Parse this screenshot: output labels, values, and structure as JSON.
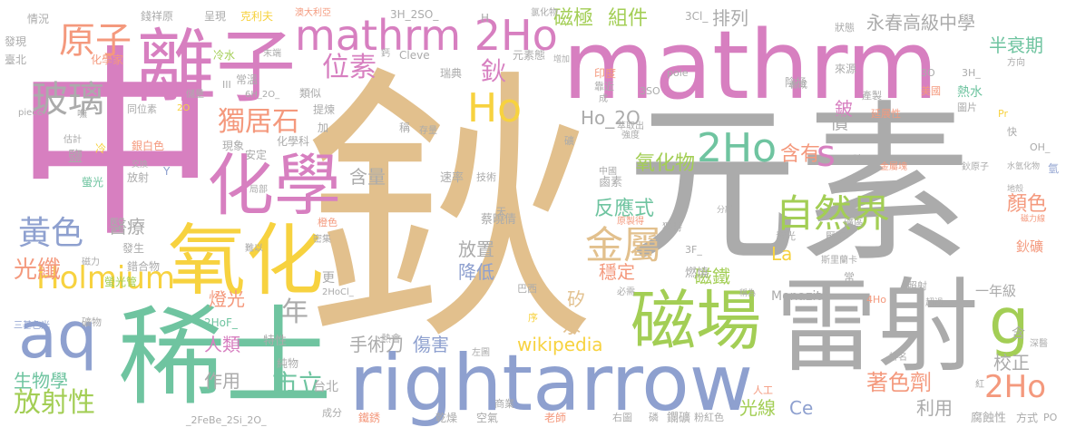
{
  "words": {
    "w1": "鈥",
    "w2": "元素",
    "w3": "mathrm",
    "w4": "中",
    "w5": "雷射",
    "w6": "rightarrow",
    "w7": "稀土",
    "w8": "離子",
    "w9": "化學",
    "w10": "氧化",
    "w11": "磁場",
    "w12": "mathrm 2Ho",
    "w13": "aq",
    "w14": "g",
    "w15": "2Ho",
    "w16": "Ho",
    "w17": "Holmium",
    "w18": "自然界",
    "w19": "金屬",
    "w20": "2Ho",
    "w21": "s",
    "w22": "玻璃",
    "w23": "原子",
    "w24": "位素",
    "w25": "獨居石",
    "w26": "黃色",
    "w27": "光纖",
    "w28": "年",
    "w29": "放射性",
    "w30": "市立",
    "w31": "磁極",
    "w32": "組件",
    "w33": "排列",
    "w34": "永春高級中學",
    "w35": "半衰期",
    "w36": "鈥",
    "w37": "氧化物",
    "w38": "含有",
    "w39": "反應式",
    "w40": "顏色",
    "w41": "著色劑",
    "w42": "光線",
    "w43": "Ce",
    "w44": "傷害",
    "w45": "wikipedia",
    "w46": "燈光",
    "w47": "生物學",
    "w48": "醫療",
    "w49": "含量",
    "w50": "磁鐵",
    "w51": "穩定",
    "w52": "降低",
    "w53": "放置",
    "w54": "La",
    "w55": "校正",
    "w56": "利用",
    "w57": "Ho_2O",
    "w58": "作用",
    "w59": "手術刀",
    "w60": "人類",
    "w61": "水",
    "w62": "矽",
    "w63": "鈹",
    "w64": "價",
    "w65": "一年級",
    "w66": "鈥礦",
    "w67": "Monazite",
    "w68": "台北",
    "w69": "燃燒",
    "w70": "含",
    "w71": "腐蝕性",
    "w72": "方式",
    "w73": "PO",
    "w74": "更",
    "w75": "特性",
    "w76": "空氣",
    "w77": "乾燥",
    "w78": "老師",
    "w79": "右圖",
    "w80": "磷",
    "w81": "鑭礦",
    "w82": "粉紅色",
    "w83": "鐵銹",
    "w84": "成分",
    "w85": "_2FeBe_2Si_2O_",
    "w86": "蔡曉倩",
    "w87": "巴西",
    "w88": "瑞典",
    "w89": "鹵素",
    "w90": "速率",
    "w91": "技術",
    "w92": "錢祥原",
    "w93": "呈現",
    "w94": "克利夫",
    "w95": "澳大利亞",
    "w96": "3H_2SO_",
    "w97": "H",
    "w98": "氯化物",
    "w99": "3Cl_",
    "w100": "狀態",
    "w101": "情況",
    "w102": "發現",
    "w103": "臺北",
    "w104": "化學家",
    "w105": "冷水",
    "w106": "常溫",
    "w107": "類似",
    "w108": "6H_2O_",
    "w109": "化學科",
    "w110": "提煉",
    "w111": "現象",
    "w112": "安定",
    "w113": "銀白色",
    "w114": "鹽",
    "w115": "螢光",
    "w116": "放射",
    "w117": "Y",
    "w118": "冷",
    "w119": "估計",
    "w120": "交換",
    "w121": "piece",
    "w122": "同位素",
    "w123": "2O",
    "w124": "儲量",
    "w125": "末端",
    "w126": "鈣",
    "w127": "Cleve",
    "w128": "元素態",
    "w129": "增加",
    "w130": "印度",
    "w131": "靠近",
    "w132": "成",
    "w133": "3SO",
    "w134": "pole",
    "w135": "陰極",
    "w136": "來源",
    "w137": "3O",
    "w138": "3H_",
    "w139": "美國",
    "w140": "熱水",
    "w141": "圖片",
    "w142": "方向",
    "w143": "合成",
    "w144": "延展性",
    "w145": "產製",
    "w146": "Pr",
    "w147": "快",
    "w148": "金屬塊",
    "w149": "鈥原子",
    "w150": "水氫化物",
    "w151": "OH_",
    "w152": "時",
    "w153": "萃取出",
    "w154": "強度",
    "w155": "礦",
    "w156": "存量",
    "w157": "稱",
    "w158": "地殼",
    "w159": "分離",
    "w160": "磁力線",
    "w161": "礦區",
    "w162": "原製得",
    "w163": "中國",
    "w164": "獨特",
    "w165": "發光",
    "w166": "壓下",
    "w167": "斯里蘭卡",
    "w168": "3F_",
    "w169": "2HoCl_",
    "w170": "橙色",
    "w171": "密集",
    "w172": "發生",
    "w173": "錯合物",
    "w174": "磁力",
    "w175": "螢光管",
    "w176": "難以",
    "w177": "常",
    "w178": "必需",
    "w179": "稱為",
    "w180": "照射",
    "w181": "超過",
    "w182": "4Ho",
    "w183": "深醫",
    "w184": "氫",
    "w185": "三基色光",
    "w186": "礦物",
    "w187": "2HoF_",
    "w188": "序",
    "w189": "熱會",
    "w190": "純物",
    "w191": "左圖",
    "w192": "商業",
    "w193": "人工",
    "w194": "紅",
    "w195": "排名",
    "w196": "天",
    "w197": "局部",
    "w198": "加",
    "w199": "III",
    "w200": "嘸"
  },
  "palette": {
    "tan": "#e2c08d",
    "grey": "#ababab",
    "pink": "#d77fc0",
    "teal": "#6fc4a0",
    "periwinkle": "#8ea0cf",
    "green": "#a3ce55",
    "yellow": "#f7d23f",
    "salmon": "#f4997d"
  }
}
